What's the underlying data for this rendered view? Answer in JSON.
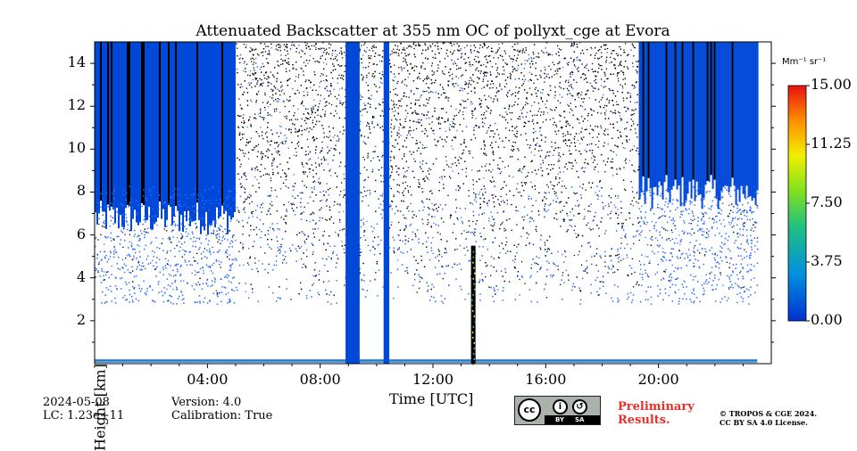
{
  "chart_data": {
    "type": "heatmap",
    "title": "Attenuated Backscatter at 355 nm OC of pollyxt_cge at Evora",
    "xlabel": "Time [UTC]",
    "ylabel": "Height [km]",
    "x_ticks": [
      "04:00",
      "08:00",
      "12:00",
      "16:00",
      "20:00"
    ],
    "x_tick_hours": [
      4,
      8,
      12,
      16,
      20
    ],
    "xlim_hours": [
      0,
      24
    ],
    "y_ticks": [
      "2",
      "4",
      "6",
      "8",
      "10",
      "12",
      "14"
    ],
    "y_tick_values": [
      2,
      4,
      6,
      8,
      10,
      12,
      14
    ],
    "ylim_km": [
      0,
      15
    ],
    "colorbar": {
      "unit": "Mm⁻¹ sr⁻¹",
      "ticks": [
        "0.00",
        "3.75",
        "7.50",
        "11.25",
        "15.00"
      ],
      "tick_values": [
        0,
        3.75,
        7.5,
        11.25,
        15
      ],
      "range": [
        0,
        15
      ]
    },
    "data_gaps_hours": [
      [
        8.9,
        9.4
      ],
      [
        10.25,
        10.45
      ]
    ],
    "colors": {
      "no_signal": "#0048d8",
      "noise": "#000000",
      "low": "#2b6cff",
      "mid": "#34c67a",
      "high": "#ffe020",
      "peak": "#e8302a"
    }
  },
  "footer": {
    "date": "2024-05-08",
    "lc": "LC: 1.23e+11",
    "version": "Version: 4.0",
    "calibration": "Calibration: True",
    "preliminary_line1": "Preliminary",
    "preliminary_line2": "Results.",
    "copyright_line1": "© TROPOS & CGE 2024.",
    "copyright_line2": "CC BY SA 4.0 License.",
    "license_badge": {
      "cc": "cc",
      "by": "BY",
      "sa": "SA"
    }
  }
}
